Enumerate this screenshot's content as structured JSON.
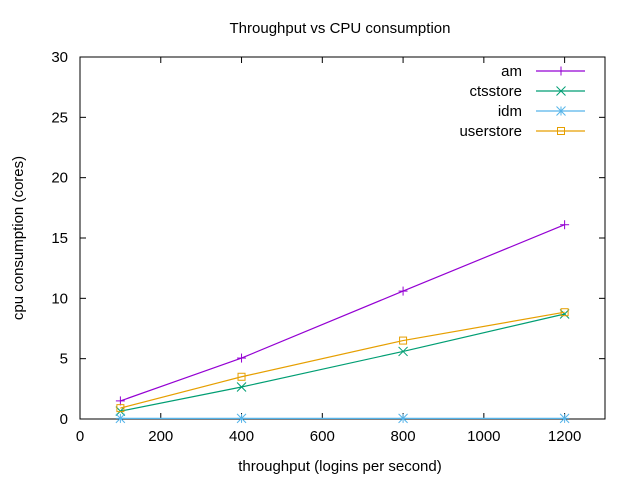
{
  "chart_data": {
    "type": "line",
    "title": "Throughput vs CPU consumption",
    "xlabel": "throughput (logins per second)",
    "ylabel": "cpu consumption (cores)",
    "xlim": [
      0,
      1300
    ],
    "ylim": [
      0,
      30
    ],
    "xticks": [
      0,
      200,
      400,
      600,
      800,
      1000,
      1200
    ],
    "yticks": [
      0,
      5,
      10,
      15,
      20,
      25,
      30
    ],
    "grid": false,
    "legend_position": "top-right",
    "x": [
      100,
      400,
      800,
      1200
    ],
    "series": [
      {
        "name": "am",
        "color": "#9400d3",
        "marker": "plus",
        "values": [
          1.5,
          5.05,
          10.6,
          16.1
        ]
      },
      {
        "name": "ctsstore",
        "color": "#009e73",
        "marker": "cross",
        "values": [
          0.65,
          2.65,
          5.6,
          8.7
        ]
      },
      {
        "name": "idm",
        "color": "#56b4e9",
        "marker": "star",
        "values": [
          0.05,
          0.05,
          0.05,
          0.05
        ]
      },
      {
        "name": "userstore",
        "color": "#e69f00",
        "marker": "square",
        "values": [
          0.9,
          3.5,
          6.5,
          8.85
        ]
      }
    ]
  }
}
